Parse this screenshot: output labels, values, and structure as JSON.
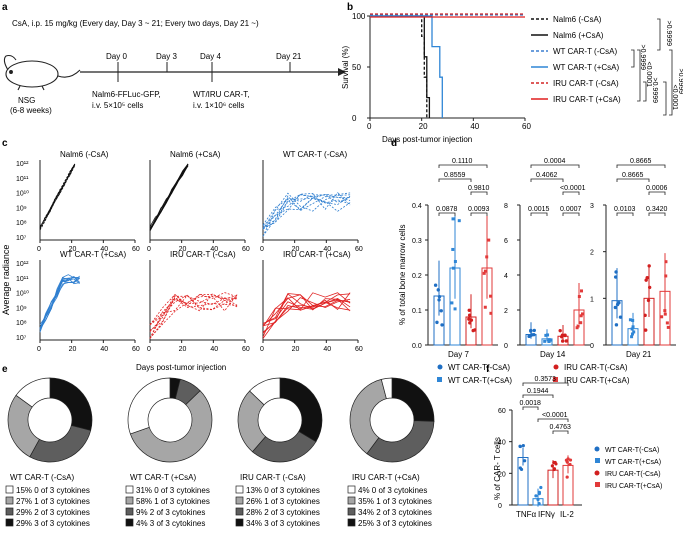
{
  "panels": {
    "a": {
      "letter": "a",
      "header": "CsA, i.p. 15 mg/kg (Every day, Day 3 ~ 21; Every two days, Day 21 ~)",
      "mouse_label": [
        "NSG",
        "(6-8 weeks)"
      ],
      "timeline": [
        {
          "day": "Day 0",
          "text": [
            "Nalm6-FFLuc-GFP,",
            "i.v. 5×10⁵ cells"
          ]
        },
        {
          "day": "Day 3",
          "text": []
        },
        {
          "day": "Day 4",
          "text": [
            "WT/IRU CAR-T,",
            "i.v. 1×10⁶ cells"
          ]
        },
        {
          "day": "Day 21",
          "text": []
        }
      ]
    },
    "b": {
      "letter": "b",
      "legend": [
        "Nalm6 (-CsA)",
        "Nalm6 (+CsA)",
        "WT CAR-T (-CsA)",
        "WT CAR-T (+CsA)",
        "IRU CAR-T (-CsA)",
        "IRU CAR-T (+CsA)"
      ],
      "pvalues": [
        ">0.9999",
        "<0.0001",
        ">0.9999",
        ">0.9999",
        "<0.0001",
        ">0.9999"
      ]
    },
    "c": {
      "letter": "c",
      "titles": [
        "Nalm6 (-CsA)",
        "Nalm6 (+CsA)",
        "WT CAR-T (-CsA)",
        "WT CAR-T (+CsA)",
        "IRU CAR-T (-CsA)",
        "IRU CAR-T (+CsA)"
      ],
      "ylabel": "Average radiance",
      "xlabel": "Days post-tumor injection",
      "yticks": [
        "10¹²",
        "10¹¹",
        "10¹⁰",
        "10⁹",
        "10⁸",
        "10⁷"
      ],
      "xticks": [
        "0",
        "20",
        "40",
        "60"
      ]
    },
    "d": {
      "letter": "d",
      "ylabel": "% of total bone marrow cells",
      "days": [
        "Day 7",
        "Day 14",
        "Day 21"
      ],
      "p_day7": [
        "0.1110",
        "0.8559",
        "0.9810",
        "0.0878",
        "0.0093"
      ],
      "p_day14": [
        "0.0004",
        "0.4062",
        "<0.0001",
        "0.0015",
        "0.0007"
      ],
      "p_day21": [
        "0.8665",
        "0.8665",
        "0.0006",
        "0.0103",
        "0.3420"
      ],
      "legend": [
        "WT CAR-T(-CsA)",
        "WT CAR-T(+CsA)",
        "IRU CAR-T(-CsA)",
        "IRU CAR-T(+CsA)"
      ],
      "y7": [
        "0.4",
        "0.3",
        "0.2",
        "0.1",
        "0.0"
      ],
      "y14": [
        "8",
        "6",
        "4",
        "2",
        "0"
      ],
      "y21": [
        "3",
        "2",
        "1",
        "0"
      ]
    },
    "e": {
      "letter": "e",
      "groups": [
        {
          "name": "WT CAR-T (-CsA)",
          "rows": [
            "15%  0 of 3 cytokines",
            "27%  1 of 3 cytokines",
            "29%  2 of 3 cytokines",
            "29%  3 of 3 cytokines"
          ]
        },
        {
          "name": "WT CAR-T (+CsA)",
          "rows": [
            "31%  0 of 3 cytokines",
            "58%  1 of 3 cytokines",
            "9%  2 of 3 cytokines",
            "4%  3 of 3 cytokines"
          ]
        },
        {
          "name": "IRU CAR-T (-CsA)",
          "rows": [
            "13%  0 of 3 cytokines",
            "26%  1 of 3 cytokines",
            "28%  2 of 3 cytokines",
            "34%  3 of 3 cytokines"
          ]
        },
        {
          "name": "IRU CAR-T (+CsA)",
          "rows": [
            "4%  0 of 3 cytokines",
            "35%  1 of 3 cytokines",
            "34%  2 of 3 cytokines",
            "25%  3 of 3 cytokines"
          ]
        }
      ]
    },
    "f": {
      "letter": "f",
      "ylabel": "% of CAR- T cells",
      "xlabels": [
        "TNFα",
        "IFNγ",
        "IL-2"
      ],
      "pvalues": [
        "0.3573",
        "0.1944",
        "0.0018",
        "<0.0001",
        "0.4763"
      ],
      "legend": [
        "WT CAR-T(-CsA)",
        "WT CAR-T(+CsA)",
        "IRU CAR-T(-CsA)",
        "IRU CAR-T(+CsA)"
      ],
      "yticks": [
        "60",
        "40",
        "20",
        "0"
      ]
    }
  },
  "chart_data": [
    {
      "type": "line",
      "title": "Survival",
      "xlabel": "Days post-tumor injection",
      "ylabel": "Survival (%)",
      "xlim": [
        0,
        60
      ],
      "ylim": [
        0,
        100
      ],
      "xticks": [
        "0",
        "20",
        "40",
        "60"
      ],
      "yticks": [
        "100",
        "50",
        "0"
      ],
      "series": [
        {
          "name": "Nalm6 (-CsA)",
          "color": "#111111",
          "dashed": true,
          "steps": [
            [
              0,
              100
            ],
            [
              20,
              100
            ],
            [
              20,
              80
            ],
            [
              21,
              80
            ],
            [
              21,
              40
            ],
            [
              22,
              40
            ],
            [
              22,
              0
            ]
          ]
        },
        {
          "name": "Nalm6 (+CsA)",
          "color": "#111111",
          "dashed": false,
          "steps": [
            [
              0,
              100
            ],
            [
              21,
              100
            ],
            [
              21,
              60
            ],
            [
              22,
              60
            ],
            [
              22,
              20
            ],
            [
              23,
              20
            ],
            [
              23,
              0
            ]
          ]
        },
        {
          "name": "WT CAR-T (-CsA)",
          "color": "#3b7fd0",
          "dashed": true,
          "steps": [
            [
              0,
              101
            ],
            [
              60,
              101
            ]
          ]
        },
        {
          "name": "WT CAR-T (+CsA)",
          "color": "#2f86d6",
          "dashed": false,
          "steps": [
            [
              0,
              100
            ],
            [
              24,
              100
            ],
            [
              24,
              70
            ],
            [
              27,
              70
            ],
            [
              27,
              40
            ],
            [
              28,
              40
            ],
            [
              28,
              0
            ]
          ]
        },
        {
          "name": "IRU CAR-T (-CsA)",
          "color": "#d32525",
          "dashed": true,
          "steps": [
            [
              0,
              102
            ],
            [
              60,
              102
            ]
          ]
        },
        {
          "name": "IRU CAR-T (+CsA)",
          "color": "#e11f1f",
          "dashed": false,
          "steps": [
            [
              0,
              99
            ],
            [
              60,
              99
            ]
          ]
        }
      ]
    },
    {
      "type": "pie",
      "title": "Polyfunctionality (0/1/2/3 of 3 cytokines)",
      "categories": [
        "0 of 3",
        "1 of 3",
        "2 of 3",
        "3 of 3"
      ],
      "colors": [
        "#ffffff",
        "#a6a6a6",
        "#5e5e5e",
        "#111111"
      ],
      "series": [
        {
          "name": "WT CAR-T (-CsA)",
          "values": [
            15,
            27,
            29,
            29
          ]
        },
        {
          "name": "WT CAR-T (+CsA)",
          "values": [
            31,
            58,
            9,
            4
          ]
        },
        {
          "name": "IRU CAR-T (-CsA)",
          "values": [
            13,
            26,
            28,
            34
          ]
        },
        {
          "name": "IRU CAR-T (+CsA)",
          "values": [
            4,
            35,
            34,
            25
          ]
        }
      ]
    },
    {
      "type": "bar",
      "title": "% of total bone marrow cells",
      "categories": [
        "Day 7",
        "Day 14",
        "Day 21"
      ],
      "series": [
        {
          "name": "WT CAR-T(-CsA)",
          "values": [
            0.14,
            0.6,
            0.95
          ]
        },
        {
          "name": "WT CAR-T(+CsA)",
          "values": [
            0.22,
            0.35,
            0.35
          ]
        },
        {
          "name": "IRU CAR-T(-CsA)",
          "values": [
            0.08,
            0.5,
            1.0
          ]
        },
        {
          "name": "IRU CAR-T(+CsA)",
          "values": [
            0.22,
            2.0,
            1.15
          ]
        }
      ]
    },
    {
      "type": "bar",
      "title": "% of CAR- T cells",
      "categories": [
        "TNFα",
        "IFNγ",
        "IL-2"
      ],
      "ylim": [
        0,
        60
      ],
      "series": [
        {
          "name": "WT CAR-T(-CsA)",
          "values": [
            30,
            5,
            0
          ]
        },
        {
          "name": "WT CAR-T(+CsA)",
          "values": [
            0,
            4,
            0
          ]
        },
        {
          "name": "IRU CAR-T(-CsA)",
          "values": [
            0,
            22,
            0
          ]
        },
        {
          "name": "IRU CAR-T(+CsA)",
          "values": [
            0,
            0,
            25
          ]
        }
      ]
    }
  ]
}
